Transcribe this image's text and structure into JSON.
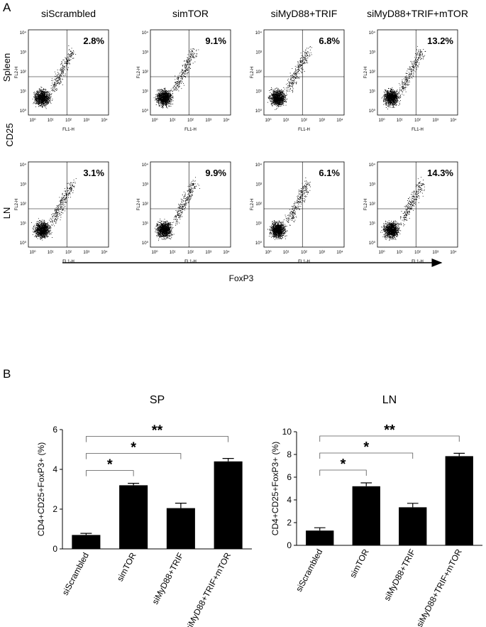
{
  "panel_a": {
    "label": "A",
    "columns": [
      "siScrambled",
      "simTOR",
      "siMyD88+TRIF",
      "siMyD88+TRIF+mTOR"
    ],
    "rows": [
      {
        "name": "Spleen",
        "percents": [
          "2.8%",
          "9.1%",
          "6.8%",
          "13.2%"
        ]
      },
      {
        "name": "LN",
        "percents": [
          "3.1%",
          "9.9%",
          "6.1%",
          "14.3%"
        ]
      }
    ],
    "y_marker": "CD25",
    "x_axis": "FoxP3",
    "plot_x_label": "FL1-H",
    "plot_y_label": "FL2-H",
    "plot_ticks": [
      "10⁰",
      "10¹",
      "10²",
      "10³",
      "10⁴"
    ]
  },
  "panel_b_label": "B",
  "chart_data": [
    {
      "type": "bar",
      "title": "SP",
      "y_label": "CD4+CD25+FoxP3+ (%)",
      "categories": [
        "siScrambled",
        "simTOR",
        "siMyD88+TRIF",
        "siMyD88+TRIF+mTOR"
      ],
      "values": [
        0.7,
        3.2,
        2.05,
        4.4
      ],
      "errors": [
        0.08,
        0.1,
        0.25,
        0.15
      ],
      "color": "#000000",
      "ylim": [
        0,
        6
      ],
      "yticks": [
        0,
        2,
        4,
        6
      ],
      "annotations": [
        {
          "from": 0,
          "to": 1,
          "label": "*"
        },
        {
          "from": 0,
          "to": 2,
          "label": "*"
        },
        {
          "from": 0,
          "to": 3,
          "label": "**"
        }
      ]
    },
    {
      "type": "bar",
      "title": "LN",
      "y_label": "CD4+CD25+FoxP3+ (%)",
      "categories": [
        "siScrambled",
        "simTOR",
        "siMyD88+TRIF",
        "siMyD88+TRIF+mTOR"
      ],
      "values": [
        1.3,
        5.2,
        3.35,
        7.85
      ],
      "errors": [
        0.25,
        0.3,
        0.35,
        0.25
      ],
      "color": "#000000",
      "ylim": [
        0,
        10
      ],
      "yticks": [
        0,
        2,
        4,
        6,
        8,
        10
      ],
      "annotations": [
        {
          "from": 0,
          "to": 1,
          "label": "*"
        },
        {
          "from": 0,
          "to": 2,
          "label": "*"
        },
        {
          "from": 0,
          "to": 3,
          "label": "**"
        }
      ]
    }
  ]
}
